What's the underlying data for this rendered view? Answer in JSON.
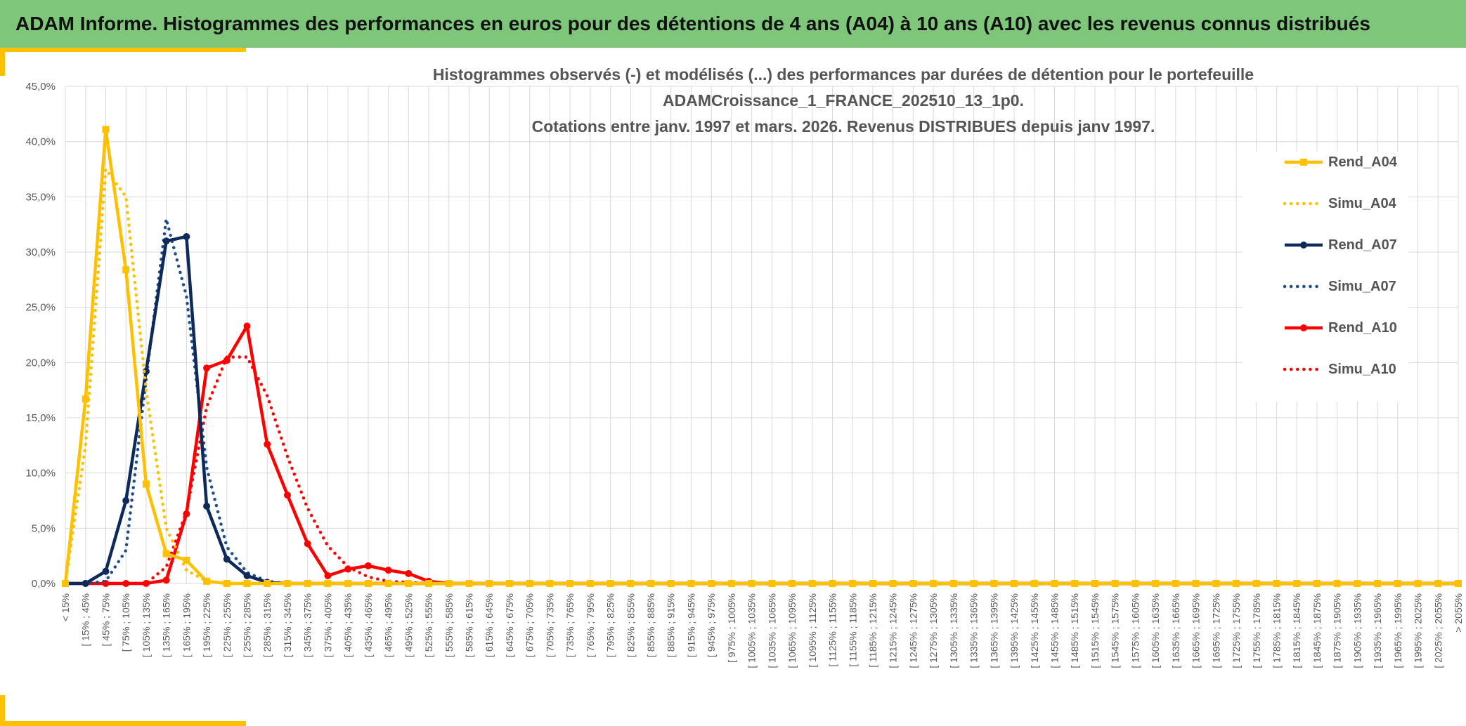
{
  "header": {
    "title": "ADAM Informe. Histogrammes des performances en euros pour des détentions de 4 ans (A04) à 10 ans (A10) avec les revenus connus distribués"
  },
  "chart_data": {
    "type": "line",
    "title_lines": [
      "Histogrammes observés (-) et modélisés (...) des performances par durées de détention pour le portefeuille",
      "ADAMCroissance_1_FRANCE_202510_13_1p0.",
      "Cotations entre janv. 1997 et mars. 2026. Revenus DISTRIBUES depuis janv 1997."
    ],
    "xlabel": "",
    "ylabel": "",
    "ylim": [
      0,
      45
    ],
    "y_ticks": [
      "0,0%",
      "5,0%",
      "10,0%",
      "15,0%",
      "20,0%",
      "25,0%",
      "30,0%",
      "35,0%",
      "40,0%",
      "45,0%"
    ],
    "grid": true,
    "legend_position": "right",
    "categories": [
      "< 15%",
      "[ 15% ; 45%",
      "[ 45% ; 75%",
      "[ 75% ; 105%",
      "[ 105% ; 135%",
      "[ 135% ; 165%",
      "[ 165% ; 195%",
      "[ 195% ; 225%",
      "[ 225% ; 255%",
      "[ 255% ; 285%",
      "[ 285% ; 315%",
      "[ 315% ; 345%",
      "[ 345% ; 375%",
      "[ 375% ; 405%",
      "[ 405% ; 435%",
      "[ 435% ; 465%",
      "[ 465% ; 495%",
      "[ 495% ; 525%",
      "[ 525% ; 555%",
      "[ 555% ; 585%",
      "[ 585% ; 615%",
      "[ 615% ; 645%",
      "[ 645% ; 675%",
      "[ 675% ; 705%",
      "[ 705% ; 735%",
      "[ 735% ; 765%",
      "[ 765% ; 795%",
      "[ 795% ; 825%",
      "[ 825% ; 855%",
      "[ 855% ; 885%",
      "[ 885% ; 915%",
      "[ 915% ; 945%",
      "[ 945% ; 975%",
      "[ 975% ; 1005%",
      "[ 1005% ; 1035%",
      "[ 1035% ; 1065%",
      "[ 1065% ; 1095%",
      "[ 1095% ; 1125%",
      "[ 1125% ; 1155%",
      "[ 1155% ; 1185%",
      "[ 1185% ; 1215%",
      "[ 1215% ; 1245%",
      "[ 1245% ; 1275%",
      "[ 1275% ; 1305%",
      "[ 1305% ; 1335%",
      "[ 1335% ; 1365%",
      "[ 1365% ; 1395%",
      "[ 1395% ; 1425%",
      "[ 1425% ; 1455%",
      "[ 1455% ; 1485%",
      "[ 1485% ; 1515%",
      "[ 1515% ; 1545%",
      "[ 1545% ; 1575%",
      "[ 1575% ; 1605%",
      "[ 1605% ; 1635%",
      "[ 1635% ; 1665%",
      "[ 1665% ; 1695%",
      "[ 1695% ; 1725%",
      "[ 1725% ; 1755%",
      "[ 1755% ; 1785%",
      "[ 1785% ; 1815%",
      "[ 1815% ; 1845%",
      "[ 1845% ; 1875%",
      "[ 1875% ; 1905%",
      "[ 1905% ; 1935%",
      "[ 1935% ; 1965%",
      "[ 1965% ; 1995%",
      "[ 1995% ; 2025%",
      "[ 2025% ; 2055%",
      "> 2055%"
    ],
    "series": [
      {
        "name": "Rend_A04",
        "style": "solid",
        "marker": "square",
        "color": "#ffc000",
        "values": [
          0,
          16.7,
          41.1,
          28.4,
          9.0,
          2.7,
          2.1,
          0.2,
          0,
          0,
          0,
          0,
          0,
          0,
          0,
          0,
          0,
          0,
          0,
          0,
          0,
          0,
          0,
          0,
          0,
          0,
          0,
          0,
          0,
          0,
          0,
          0,
          0,
          0,
          0,
          0,
          0,
          0,
          0,
          0,
          0,
          0,
          0,
          0,
          0,
          0,
          0,
          0,
          0,
          0,
          0,
          0,
          0,
          0,
          0,
          0,
          0,
          0,
          0,
          0,
          0,
          0,
          0,
          0,
          0,
          0,
          0,
          0,
          0,
          0
        ]
      },
      {
        "name": "Simu_A04",
        "style": "dotted",
        "marker": "none",
        "color": "#ffc000",
        "values": [
          0,
          12.5,
          37.5,
          35.0,
          17.5,
          5.0,
          1.2,
          0.2,
          0,
          0,
          0,
          0,
          0,
          0,
          0,
          0,
          0,
          0,
          0,
          0,
          0,
          0,
          0,
          0,
          0,
          0,
          0,
          0,
          0,
          0,
          0,
          0,
          0,
          0,
          0,
          0,
          0,
          0,
          0,
          0,
          0,
          0,
          0,
          0,
          0,
          0,
          0,
          0,
          0,
          0,
          0,
          0,
          0,
          0,
          0,
          0,
          0,
          0,
          0,
          0,
          0,
          0,
          0,
          0,
          0,
          0,
          0,
          0,
          0,
          0
        ]
      },
      {
        "name": "Rend_A07",
        "style": "solid",
        "marker": "circle",
        "color": "#0e2a5b",
        "values": [
          0,
          0,
          1.1,
          7.5,
          19.2,
          31.0,
          31.4,
          7.0,
          2.2,
          0.7,
          0.1,
          0,
          0,
          0,
          0,
          0,
          0,
          0,
          0,
          0,
          0,
          0,
          0,
          0,
          0,
          0,
          0,
          0,
          0,
          0,
          0,
          0,
          0,
          0,
          0,
          0,
          0,
          0,
          0,
          0,
          0,
          0,
          0,
          0,
          0,
          0,
          0,
          0,
          0,
          0,
          0,
          0,
          0,
          0,
          0,
          0,
          0,
          0,
          0,
          0,
          0,
          0,
          0,
          0,
          0,
          0,
          0,
          0,
          0,
          0
        ]
      },
      {
        "name": "Simu_A07",
        "style": "dotted",
        "marker": "none",
        "color": "#1f4e8c",
        "values": [
          0,
          0,
          0.2,
          3.0,
          18.5,
          33.0,
          26.0,
          10.5,
          3.3,
          1.0,
          0.2,
          0,
          0,
          0,
          0,
          0,
          0,
          0,
          0,
          0,
          0,
          0,
          0,
          0,
          0,
          0,
          0,
          0,
          0,
          0,
          0,
          0,
          0,
          0,
          0,
          0,
          0,
          0,
          0,
          0,
          0,
          0,
          0,
          0,
          0,
          0,
          0,
          0,
          0,
          0,
          0,
          0,
          0,
          0,
          0,
          0,
          0,
          0,
          0,
          0,
          0,
          0,
          0,
          0,
          0,
          0,
          0,
          0,
          0,
          0
        ]
      },
      {
        "name": "Rend_A10",
        "style": "solid",
        "marker": "circle",
        "color": "#ff0000",
        "values": [
          0,
          0,
          0,
          0,
          0,
          0.3,
          6.3,
          19.5,
          20.2,
          23.3,
          12.6,
          8.0,
          3.6,
          0.7,
          1.3,
          1.6,
          1.2,
          0.9,
          0.2,
          0,
          0,
          0,
          0,
          0,
          0,
          0,
          0,
          0,
          0,
          0,
          0,
          0,
          0,
          0,
          0,
          0,
          0,
          0,
          0,
          0,
          0,
          0,
          0,
          0,
          0,
          0,
          0,
          0,
          0,
          0,
          0,
          0,
          0,
          0,
          0,
          0,
          0,
          0,
          0,
          0,
          0,
          0,
          0,
          0,
          0,
          0,
          0,
          0,
          0,
          0
        ]
      },
      {
        "name": "Simu_A10",
        "style": "dotted",
        "marker": "none",
        "color": "#ff0000",
        "values": [
          0,
          0,
          0,
          0,
          0,
          1.5,
          6.5,
          16.0,
          20.5,
          20.5,
          17.0,
          11.5,
          6.8,
          3.4,
          1.5,
          0.6,
          0.2,
          0.1,
          0,
          0,
          0,
          0,
          0,
          0,
          0,
          0,
          0,
          0,
          0,
          0,
          0,
          0,
          0,
          0,
          0,
          0,
          0,
          0,
          0,
          0,
          0,
          0,
          0,
          0,
          0,
          0,
          0,
          0,
          0,
          0,
          0,
          0,
          0,
          0,
          0,
          0,
          0,
          0,
          0,
          0,
          0,
          0,
          0,
          0,
          0,
          0,
          0,
          0,
          0,
          0
        ]
      }
    ]
  }
}
